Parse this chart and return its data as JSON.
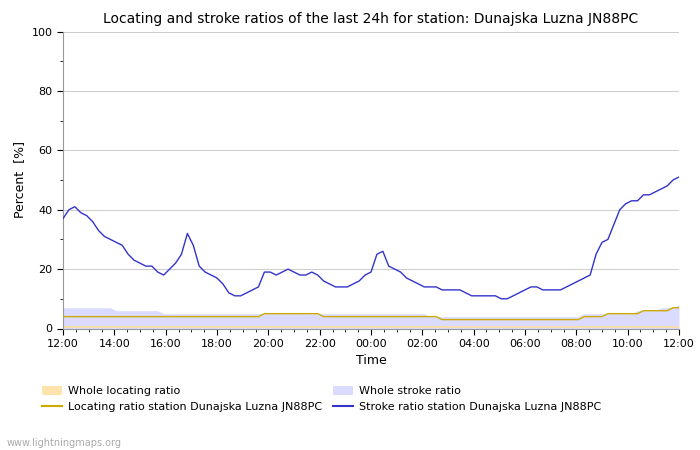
{
  "title": "Locating and stroke ratios of the last 24h for station: Dunajska Luzna JN88PC",
  "xlabel": "Time",
  "ylabel": "Percent  [%]",
  "ylim": [
    0,
    100
  ],
  "yticks": [
    0,
    20,
    40,
    60,
    80,
    100
  ],
  "xtick_labels": [
    "12:00",
    "14:00",
    "16:00",
    "18:00",
    "20:00",
    "22:00",
    "00:00",
    "02:00",
    "04:00",
    "06:00",
    "08:00",
    "10:00",
    "12:00"
  ],
  "watermark": "www.lightningmaps.org",
  "stroke_ratio": [
    37,
    40,
    41,
    39,
    38,
    36,
    33,
    31,
    30,
    29,
    28,
    25,
    23,
    22,
    21,
    21,
    19,
    18,
    20,
    22,
    25,
    32,
    28,
    21,
    19,
    18,
    17,
    15,
    12,
    11,
    11,
    12,
    13,
    14,
    19,
    19,
    18,
    19,
    20,
    19,
    18,
    18,
    19,
    18,
    16,
    15,
    14,
    14,
    14,
    15,
    16,
    18,
    19,
    25,
    26,
    21,
    20,
    19,
    17,
    16,
    15,
    14,
    14,
    14,
    13,
    13,
    13,
    13,
    12,
    11,
    11,
    11,
    11,
    11,
    10,
    10,
    11,
    12,
    13,
    14,
    14,
    13,
    13,
    13,
    13,
    14,
    15,
    16,
    17,
    18,
    25,
    29,
    30,
    35,
    40,
    42,
    43,
    43,
    45,
    45,
    46,
    47,
    48,
    50,
    51
  ],
  "locating_ratio": [
    4,
    4,
    4,
    4,
    4,
    4,
    4,
    4,
    4,
    4,
    4,
    4,
    4,
    4,
    4,
    4,
    4,
    4,
    4,
    4,
    4,
    4,
    4,
    4,
    4,
    4,
    4,
    4,
    4,
    4,
    4,
    4,
    4,
    4,
    5,
    5,
    5,
    5,
    5,
    5,
    5,
    5,
    5,
    5,
    4,
    4,
    4,
    4,
    4,
    4,
    4,
    4,
    4,
    4,
    4,
    4,
    4,
    4,
    4,
    4,
    4,
    4,
    4,
    4,
    3,
    3,
    3,
    3,
    3,
    3,
    3,
    3,
    3,
    3,
    3,
    3,
    3,
    3,
    3,
    3,
    3,
    3,
    3,
    3,
    3,
    3,
    3,
    3,
    4,
    4,
    4,
    4,
    5,
    5,
    5,
    5,
    5,
    5,
    6,
    6,
    6,
    6,
    6,
    7,
    7
  ],
  "whole_stroke_fill_color": "#c8c8ff",
  "whole_stroke_fill_alpha": 0.65,
  "whole_locating_fill_color": "#ffdd99",
  "whole_locating_fill_alpha": 0.8,
  "locating_line_color": "#ccaa00",
  "stroke_line_color": "#3333cc",
  "whole_stroke_ratio": [
    7,
    7,
    7,
    7,
    7,
    7,
    7,
    7,
    7,
    6,
    6,
    6,
    6,
    6,
    6,
    6,
    6,
    5,
    5,
    5,
    5,
    5,
    5,
    5,
    5,
    5,
    5,
    5,
    5,
    5,
    5,
    5,
    5,
    5,
    5,
    5,
    5,
    5,
    5,
    5,
    5,
    5,
    5,
    5,
    5,
    5,
    5,
    5,
    5,
    5,
    5,
    5,
    5,
    5,
    5,
    5,
    5,
    5,
    5,
    5,
    5,
    5,
    4,
    4,
    4,
    4,
    4,
    4,
    4,
    4,
    4,
    4,
    4,
    4,
    4,
    4,
    4,
    4,
    4,
    4,
    4,
    4,
    4,
    4,
    4,
    4,
    4,
    4,
    5,
    5,
    5,
    5,
    5,
    5,
    5,
    5,
    5,
    6,
    6,
    6,
    6,
    7,
    7,
    7,
    8
  ],
  "whole_locating_ratio": [
    1,
    1,
    1,
    1,
    1,
    1,
    1,
    1,
    1,
    1,
    1,
    1,
    1,
    1,
    1,
    1,
    1,
    1,
    1,
    1,
    1,
    1,
    1,
    1,
    1,
    1,
    1,
    1,
    1,
    1,
    1,
    1,
    1,
    1,
    1,
    1,
    1,
    1,
    1,
    1,
    1,
    1,
    1,
    1,
    1,
    1,
    1,
    1,
    1,
    1,
    1,
    1,
    1,
    1,
    1,
    1,
    1,
    1,
    1,
    1,
    1,
    1,
    1,
    1,
    1,
    1,
    1,
    1,
    1,
    1,
    1,
    1,
    1,
    1,
    1,
    1,
    1,
    1,
    1,
    1,
    1,
    1,
    1,
    1,
    1,
    1,
    1,
    1,
    1,
    1,
    1,
    1,
    1,
    1,
    1,
    1,
    1,
    1,
    1,
    1,
    1,
    1,
    1,
    1,
    1
  ],
  "background_color": "#ffffff",
  "grid_color": "#cccccc",
  "title_fontsize": 10,
  "tick_fontsize": 8,
  "label_fontsize": 9,
  "legend_fontsize": 8,
  "legend_items": [
    {
      "type": "patch",
      "label": "Whole locating ratio",
      "color": "#ffdd99",
      "alpha": 0.8
    },
    {
      "type": "line",
      "label": "Locating ratio station Dunajska Luzna JN88PC",
      "color": "#ccaa00"
    },
    {
      "type": "patch",
      "label": "Whole stroke ratio",
      "color": "#c8c8ff",
      "alpha": 0.65
    },
    {
      "type": "line",
      "label": "Stroke ratio station Dunajska Luzna JN88PC",
      "color": "#3333cc"
    }
  ]
}
